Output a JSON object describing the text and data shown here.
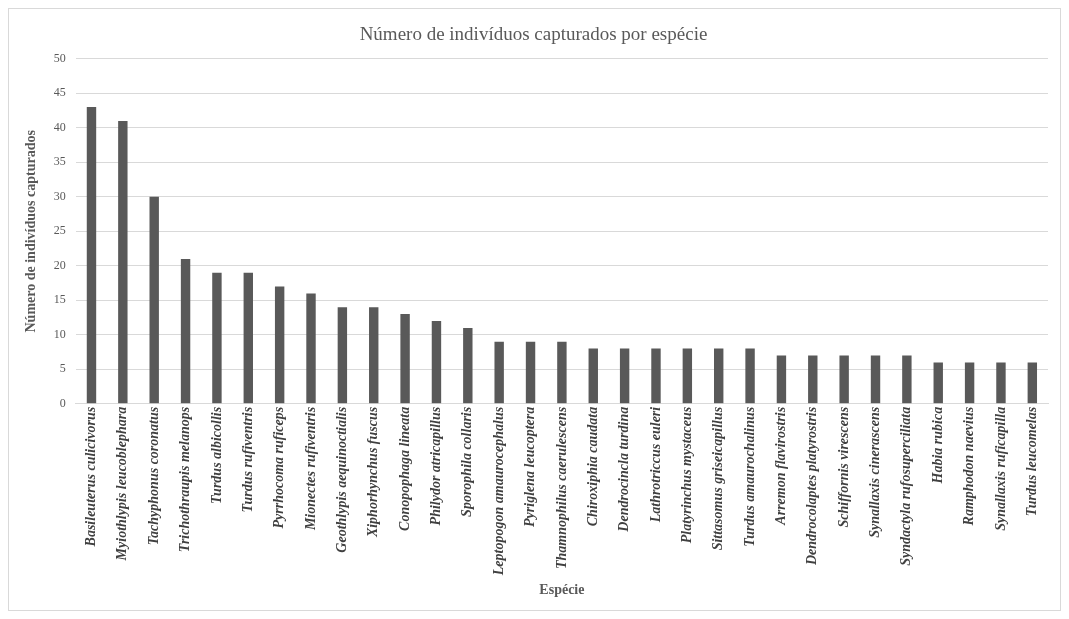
{
  "chart_data": {
    "type": "bar",
    "title": "Número de indivíduos capturados por espécie",
    "xlabel": "Espécie",
    "ylabel": "Número de indivíduos capturados",
    "categories": [
      "Basileuterus culicivorus",
      "Myiothlypis leucoblephara",
      "Tachyphonus coronatus",
      "Trichothraupis melanops",
      "Turdus albicollis",
      "Turdus rufiventris",
      "Pyrrhocoma ruficeps",
      "Mionectes rufiventris",
      "Geothlypis aequinoctialis",
      "Xiphorhynchus fuscus",
      "Conopophaga lineata",
      "Philydor atricapillus",
      "Sporophila collaris",
      "Leptopogon amaurocephalus",
      "Pyriglena leucoptera",
      "Thamnophilus caerulescens",
      "Chiroxiphia caudata",
      "Dendrocincla turdina",
      "Lathrotriccus euleri",
      "Platyrinchus mystaceus",
      "Sittasomus griseicapillus",
      "Turdus amaurochalinus",
      "Arremon flavirostris",
      "Dendrocolaptes platyrostris",
      "Schiffornis virescens",
      "Synallaxis cinerascens",
      "Syndactyla rufosuperciliata",
      "Habia rubica",
      "Ramphodon naevius",
      "Synallaxis ruficapilla",
      "Turdus leucomelas"
    ],
    "values": [
      43,
      41,
      30,
      21,
      19,
      19,
      17,
      16,
      14,
      14,
      13,
      12,
      11,
      9,
      9,
      9,
      8,
      8,
      8,
      8,
      8,
      8,
      7,
      7,
      7,
      7,
      7,
      6,
      6,
      6,
      6
    ],
    "color": "#595959",
    "ylim": [
      0,
      50
    ],
    "yticks": [
      0,
      5,
      10,
      15,
      20,
      25,
      30,
      35,
      40,
      45,
      50
    ],
    "grid": "y",
    "legend": false
  }
}
